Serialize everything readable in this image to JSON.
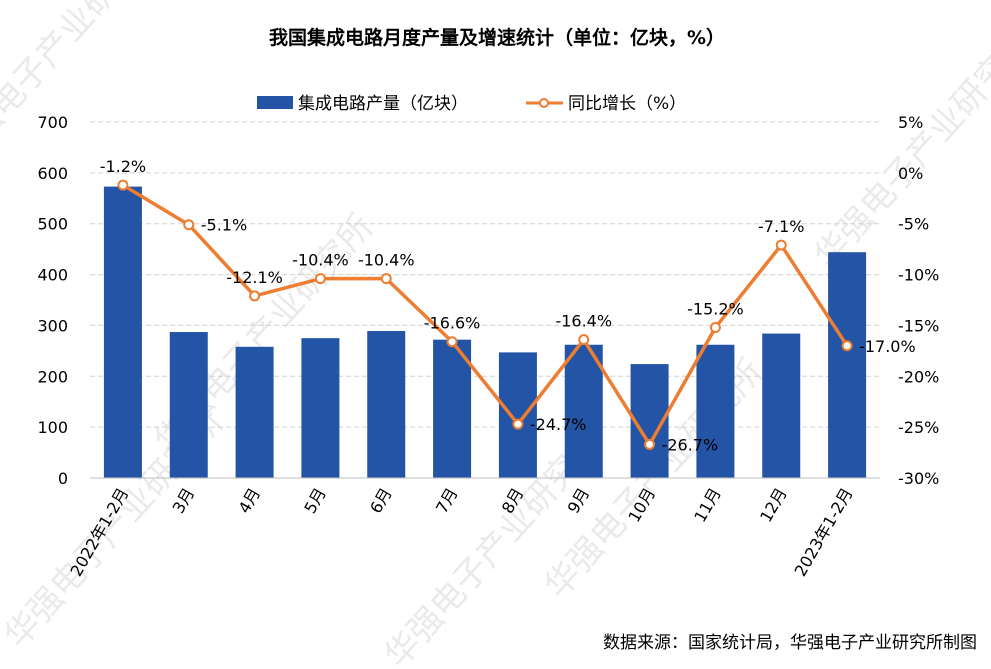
{
  "chart_data": {
    "type": "bar+line",
    "title": "我国集成电路月度产量及增速统计（单位：亿块，%）",
    "categories": [
      "2022年1-2月",
      "3月",
      "4月",
      "5月",
      "6月",
      "7月",
      "8月",
      "9月",
      "10月",
      "11月",
      "12月",
      "2023年1-2月"
    ],
    "series": [
      {
        "name": "集成电路产量（亿块）",
        "type": "bar",
        "axis": "left",
        "color": "#2454a6",
        "values": [
          573,
          287,
          258,
          275,
          289,
          272,
          247,
          262,
          224,
          262,
          284,
          444
        ]
      },
      {
        "name": "同比增长（%）",
        "type": "line",
        "axis": "right",
        "color": "#ed7d31",
        "values": [
          -1.2,
          -5.1,
          -12.1,
          -10.4,
          -10.4,
          -16.6,
          -24.7,
          -16.4,
          -26.7,
          -15.2,
          -7.1,
          -17.0
        ],
        "labels": [
          "-1.2%",
          "-5.1%",
          "-12.1%",
          "-10.4%",
          "-10.4%",
          "-16.6%",
          "-24.7%",
          "-16.4%",
          "-26.7%",
          "-15.2%",
          "-7.1%",
          "-17.0%"
        ]
      }
    ],
    "y_left": {
      "min": 0,
      "max": 700,
      "ticks": [
        "0",
        "100",
        "200",
        "300",
        "400",
        "500",
        "600",
        "700"
      ]
    },
    "y_right": {
      "min": -30,
      "max": 5,
      "ticks": [
        "-30%",
        "-25%",
        "-20%",
        "-15%",
        "-10%",
        "-5%",
        "0%",
        "5%"
      ]
    },
    "grid": true,
    "legend_position": "top"
  },
  "source": "数据来源：国家统计局，华强电子产业研究所制图",
  "watermark": "华强电子产业研究所"
}
